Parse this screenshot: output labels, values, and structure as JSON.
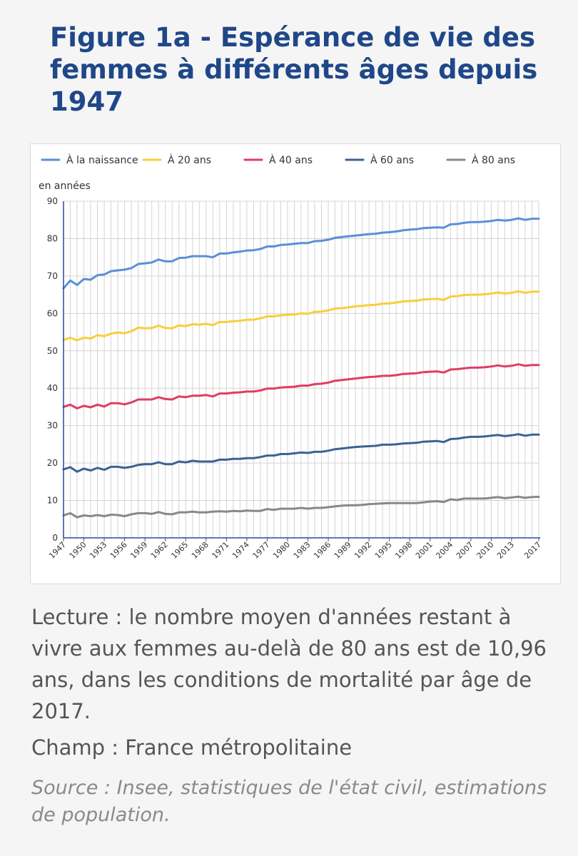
{
  "title": "Figure 1a - Espérance de vie des femmes à différents âges depuis 1947",
  "reading": "Lecture : le nombre moyen d'années restant à vivre aux femmes au-delà de 80 ans est de 10,96 ans, dans les conditions de mortalité par âge de 2017.",
  "field": "Champ : France métropolitaine",
  "source": "Source : Insee, statistiques de l'état civil, estimations de population.",
  "chart_data": {
    "type": "line",
    "ylabel": "en années",
    "ylim": [
      0,
      90
    ],
    "yticks": [
      0,
      10,
      20,
      30,
      40,
      50,
      60,
      70,
      80,
      90
    ],
    "xlim": [
      1947,
      2017
    ],
    "xticks": [
      1947,
      1950,
      1953,
      1956,
      1959,
      1962,
      1965,
      1968,
      1971,
      1974,
      1977,
      1980,
      1983,
      1986,
      1989,
      1992,
      1995,
      1998,
      2001,
      2004,
      2007,
      2010,
      2013,
      2017
    ],
    "grid": true,
    "legend_position": "top",
    "x": [
      1947,
      1948,
      1949,
      1950,
      1951,
      1952,
      1953,
      1954,
      1955,
      1956,
      1957,
      1958,
      1959,
      1960,
      1961,
      1962,
      1963,
      1964,
      1965,
      1966,
      1967,
      1968,
      1969,
      1970,
      1971,
      1972,
      1973,
      1974,
      1975,
      1976,
      1977,
      1978,
      1979,
      1980,
      1981,
      1982,
      1983,
      1984,
      1985,
      1986,
      1987,
      1988,
      1989,
      1990,
      1991,
      1992,
      1993,
      1994,
      1995,
      1996,
      1997,
      1998,
      1999,
      2000,
      2001,
      2002,
      2003,
      2004,
      2005,
      2006,
      2007,
      2008,
      2009,
      2010,
      2011,
      2012,
      2013,
      2014,
      2015,
      2016,
      2017
    ],
    "series": [
      {
        "name": "À la naissance",
        "color": "#5b8fd6",
        "values": [
          66.7,
          68.8,
          67.6,
          69.2,
          69.0,
          70.2,
          70.4,
          71.3,
          71.5,
          71.7,
          72.1,
          73.2,
          73.4,
          73.6,
          74.4,
          73.9,
          73.9,
          74.8,
          74.9,
          75.3,
          75.3,
          75.3,
          75.0,
          76.0,
          76.0,
          76.3,
          76.5,
          76.8,
          76.9,
          77.2,
          77.9,
          77.9,
          78.3,
          78.4,
          78.6,
          78.8,
          78.8,
          79.3,
          79.4,
          79.7,
          80.2,
          80.4,
          80.6,
          80.8,
          81.0,
          81.2,
          81.3,
          81.6,
          81.7,
          81.9,
          82.2,
          82.4,
          82.5,
          82.8,
          82.9,
          83.0,
          82.9,
          83.8,
          83.9,
          84.2,
          84.4,
          84.4,
          84.5,
          84.7,
          85.0,
          84.8,
          85.0,
          85.4,
          85.0,
          85.3,
          85.3
        ]
      },
      {
        "name": "À 20 ans",
        "color": "#f7cf3a",
        "values": [
          52.9,
          53.5,
          52.8,
          53.5,
          53.3,
          54.2,
          53.9,
          54.6,
          54.9,
          54.7,
          55.2,
          56.2,
          56.0,
          56.1,
          56.7,
          56.1,
          56.0,
          56.8,
          56.6,
          57.1,
          57.0,
          57.2,
          56.9,
          57.7,
          57.7,
          57.9,
          58.0,
          58.3,
          58.3,
          58.7,
          59.2,
          59.2,
          59.5,
          59.6,
          59.7,
          60.0,
          59.9,
          60.4,
          60.5,
          60.8,
          61.3,
          61.4,
          61.6,
          61.9,
          62.0,
          62.2,
          62.3,
          62.6,
          62.7,
          62.9,
          63.2,
          63.3,
          63.4,
          63.7,
          63.8,
          63.9,
          63.6,
          64.5,
          64.6,
          64.9,
          65.0,
          65.0,
          65.1,
          65.3,
          65.6,
          65.3,
          65.5,
          65.9,
          65.5,
          65.8,
          65.8
        ]
      },
      {
        "name": "À 40 ans",
        "color": "#e03c64",
        "values": [
          35.0,
          35.6,
          34.6,
          35.3,
          34.9,
          35.6,
          35.1,
          36.0,
          36.0,
          35.7,
          36.2,
          37.0,
          37.0,
          37.0,
          37.6,
          37.1,
          37.0,
          37.8,
          37.6,
          38.0,
          38.0,
          38.2,
          37.8,
          38.6,
          38.6,
          38.8,
          38.9,
          39.1,
          39.1,
          39.4,
          39.9,
          39.9,
          40.2,
          40.3,
          40.4,
          40.7,
          40.7,
          41.1,
          41.2,
          41.5,
          42.0,
          42.2,
          42.4,
          42.6,
          42.8,
          43.0,
          43.1,
          43.3,
          43.3,
          43.5,
          43.8,
          43.9,
          44.0,
          44.3,
          44.4,
          44.5,
          44.2,
          45.0,
          45.1,
          45.3,
          45.5,
          45.5,
          45.6,
          45.8,
          46.1,
          45.8,
          46.0,
          46.4,
          46.0,
          46.2,
          46.2
        ]
      },
      {
        "name": "À 60 ans",
        "color": "#3c6291",
        "values": [
          18.3,
          18.9,
          17.7,
          18.5,
          18.0,
          18.7,
          18.2,
          19.0,
          19.0,
          18.7,
          19.0,
          19.5,
          19.7,
          19.7,
          20.2,
          19.7,
          19.7,
          20.4,
          20.2,
          20.6,
          20.4,
          20.4,
          20.4,
          20.9,
          20.9,
          21.1,
          21.1,
          21.3,
          21.3,
          21.6,
          22.0,
          22.0,
          22.4,
          22.4,
          22.6,
          22.8,
          22.7,
          23.0,
          23.0,
          23.3,
          23.7,
          23.9,
          24.1,
          24.3,
          24.4,
          24.5,
          24.6,
          24.9,
          24.9,
          25.0,
          25.2,
          25.3,
          25.4,
          25.7,
          25.8,
          25.9,
          25.6,
          26.4,
          26.5,
          26.8,
          27.0,
          27.0,
          27.1,
          27.3,
          27.5,
          27.2,
          27.4,
          27.7,
          27.3,
          27.6,
          27.6
        ]
      },
      {
        "name": "À 80 ans",
        "color": "#888888",
        "values": [
          6.0,
          6.6,
          5.5,
          6.0,
          5.8,
          6.1,
          5.8,
          6.2,
          6.1,
          5.8,
          6.3,
          6.6,
          6.6,
          6.4,
          6.9,
          6.4,
          6.3,
          6.8,
          6.8,
          7.0,
          6.8,
          6.8,
          7.0,
          7.1,
          7.0,
          7.2,
          7.1,
          7.3,
          7.2,
          7.2,
          7.7,
          7.5,
          7.8,
          7.8,
          7.8,
          8.0,
          7.8,
          8.0,
          8.0,
          8.2,
          8.4,
          8.6,
          8.7,
          8.7,
          8.8,
          9.0,
          9.1,
          9.2,
          9.3,
          9.3,
          9.3,
          9.3,
          9.3,
          9.5,
          9.7,
          9.8,
          9.6,
          10.3,
          10.1,
          10.5,
          10.5,
          10.5,
          10.5,
          10.7,
          10.9,
          10.6,
          10.8,
          11.0,
          10.7,
          10.9,
          10.96
        ]
      }
    ]
  }
}
